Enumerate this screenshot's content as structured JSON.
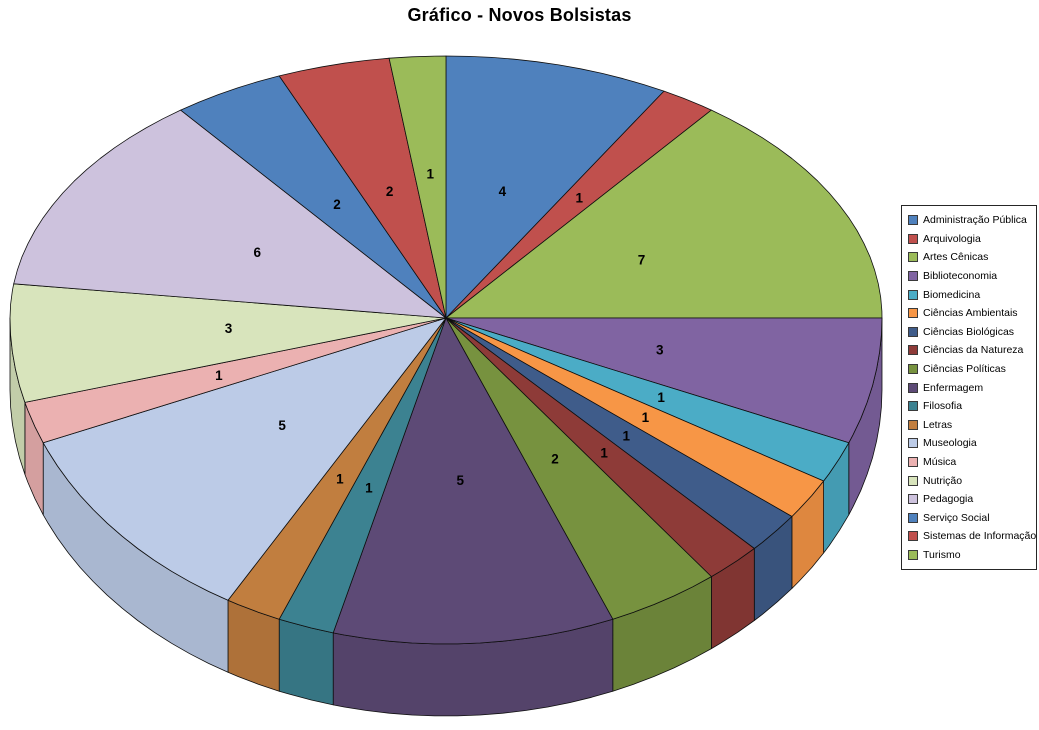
{
  "title": "Gráfico - Novos Bolsistas",
  "chart_data": {
    "type": "pie",
    "projection": "3d",
    "title": "Gráfico - Novos Bolsistas",
    "legend_position": "right",
    "data_labels": "value-inside-slice",
    "start_angle_deg": 0,
    "direction": "clockwise",
    "total": 48,
    "categories": [
      "Administração Pública",
      "Arquivologia",
      "Artes Cênicas",
      "Biblioteconomia",
      "Biomedicina",
      "Ciências Ambientais",
      "Ciências Biológicas",
      "Ciências da Natureza",
      "Ciências Políticas",
      "Enfermagem",
      "Filosofia",
      "Letras",
      "Museologia",
      "Música",
      "Nutrição",
      "Pedagogia",
      "Serviço Social",
      "Sistemas de Informação",
      "Turismo"
    ],
    "values": [
      4,
      1,
      7,
      3,
      1,
      1,
      1,
      1,
      2,
      5,
      1,
      1,
      5,
      1,
      3,
      6,
      2,
      2,
      1
    ],
    "colors": [
      "#4F81BD",
      "#C0504D",
      "#9BBB59",
      "#8064A2",
      "#4BACC6",
      "#F79646",
      "#3F5C8A",
      "#8E3B38",
      "#77923F",
      "#5D4A76",
      "#3C8291",
      "#C17E3F",
      "#BCCBE7",
      "#EBB1B1",
      "#D8E4BC",
      "#CDC2DD",
      "#4F81BD",
      "#C0504D",
      "#9BBB59"
    ],
    "outline_color": "#0f0f0f",
    "label_color": "#000000"
  }
}
